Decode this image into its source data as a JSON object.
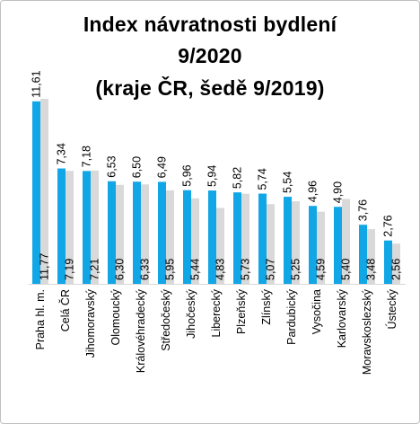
{
  "chart_data": {
    "type": "bar",
    "title": [
      "Index návratnosti bydlení",
      "9/2020",
      "(kraje ČR, šedě 9/2019)"
    ],
    "categories": [
      "Praha hl. m.",
      "Celá ČR",
      "Jihomoravský",
      "Olomoucký",
      "Královéhradecký",
      "Středočeský",
      "Jihočeský",
      "Liberecký",
      "Plzeňský",
      "Zlínský",
      "Pardubický",
      "Vysočina",
      "Karlovarský",
      "Moravskoslezský",
      "Ústecký"
    ],
    "series": [
      {
        "values": [
          11.61,
          7.34,
          7.18,
          6.53,
          6.5,
          6.49,
          5.96,
          5.94,
          5.82,
          5.74,
          5.54,
          4.96,
          4.9,
          3.76,
          2.76
        ],
        "labels": [
          "11,61",
          "7,34",
          "7,18",
          "6,53",
          "6,50",
          "6,49",
          "5,96",
          "5,94",
          "5,82",
          "5,74",
          "5,54",
          "4,96",
          "4,90",
          "3,76",
          "2,76"
        ]
      },
      {
        "values": [
          11.77,
          7.19,
          7.21,
          6.3,
          6.33,
          5.95,
          5.44,
          4.83,
          5.73,
          5.07,
          5.25,
          4.59,
          5.4,
          3.48,
          2.56
        ],
        "labels": [
          "11,77",
          "7,19",
          "7,21",
          "6,30",
          "6,33",
          "5,95",
          "5,44",
          "4,83",
          "5,73",
          "5,07",
          "5,25",
          "4,59",
          "5,40",
          "3,48",
          "2,56"
        ]
      }
    ],
    "colors": {
      "series_2020": "#11a6e6",
      "series_2019": "#d9d9d9",
      "axis": "#d9d9d9"
    },
    "ylim": [
      0,
      12
    ],
    "grid": false,
    "legend": "none"
  }
}
